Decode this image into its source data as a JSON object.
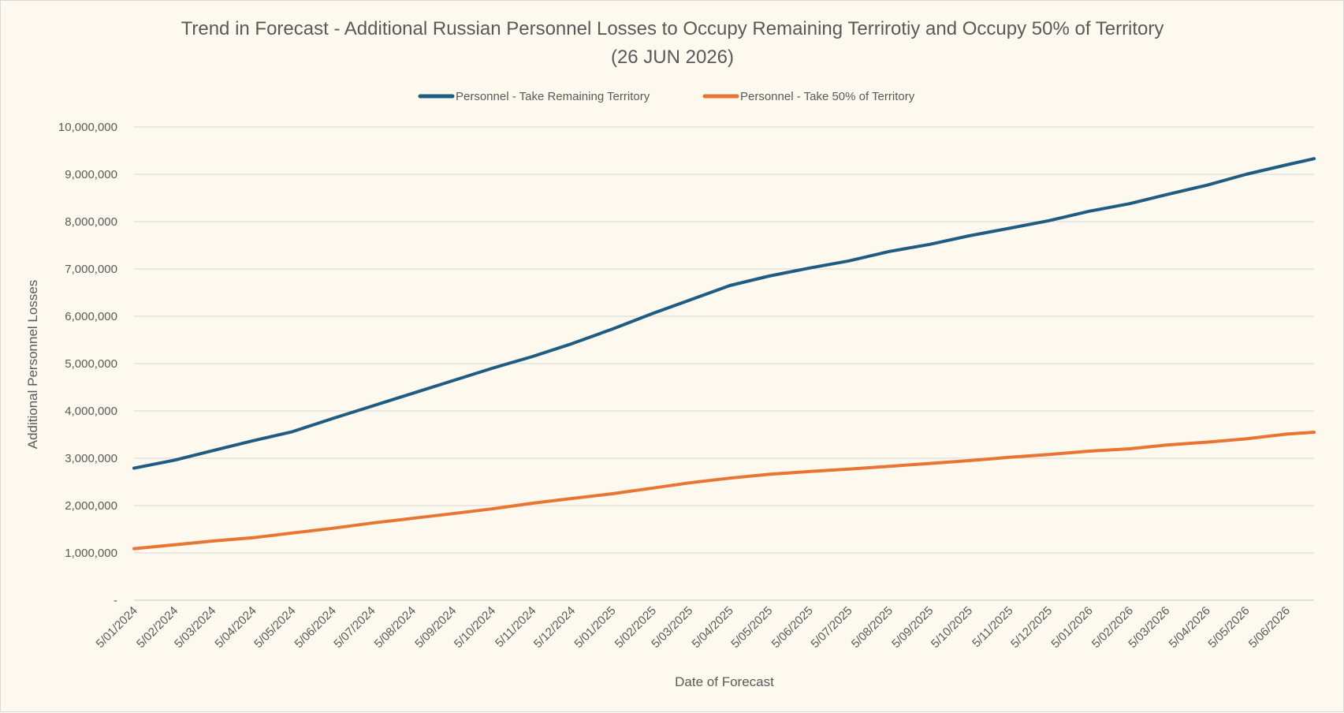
{
  "chart_data": {
    "type": "line",
    "title": "Trend in Forecast - Additional Russian Personnel Losses to Occupy Remaining Terrirotiy and Occupy 50% of Territory",
    "subtitle": "(26 JUN 2026)",
    "xlabel": "Date of Forecast",
    "ylabel": "Additional Personnel Losses",
    "ylim": [
      0,
      10000000
    ],
    "y_ticks": [
      {
        "v": 0,
        "label": "-"
      },
      {
        "v": 1000000,
        "label": "1,000,000"
      },
      {
        "v": 2000000,
        "label": "2,000,000"
      },
      {
        "v": 3000000,
        "label": "3,000,000"
      },
      {
        "v": 4000000,
        "label": "4,000,000"
      },
      {
        "v": 5000000,
        "label": "5,000,000"
      },
      {
        "v": 6000000,
        "label": "6,000,000"
      },
      {
        "v": 7000000,
        "label": "7,000,000"
      },
      {
        "v": 8000000,
        "label": "8,000,000"
      },
      {
        "v": 9000000,
        "label": "9,000,000"
      },
      {
        "v": 10000000,
        "label": "10,000,000"
      }
    ],
    "x_tick_labels": [
      "5/01/2024",
      "5/02/2024",
      "5/03/2024",
      "5/04/2024",
      "5/05/2024",
      "5/06/2024",
      "5/07/2024",
      "5/08/2024",
      "5/09/2024",
      "5/10/2024",
      "5/11/2024",
      "5/12/2024",
      "5/01/2025",
      "5/02/2025",
      "5/03/2025",
      "5/04/2025",
      "5/05/2025",
      "5/06/2025",
      "5/07/2025",
      "5/08/2025",
      "5/09/2025",
      "5/10/2025",
      "5/11/2025",
      "5/12/2025",
      "5/01/2026",
      "5/02/2026",
      "5/03/2026",
      "5/04/2026",
      "5/05/2026",
      "5/06/2026"
    ],
    "x_end": "26/06/2026",
    "grid": true,
    "legend_position": "top",
    "series": [
      {
        "name": "Personnel - Take Remaining Territory",
        "color": "#1f5c82",
        "points": [
          [
            "5/01/2024",
            2790000
          ],
          [
            "5/02/2024",
            2960000
          ],
          [
            "5/03/2024",
            3160000
          ],
          [
            "5/04/2024",
            3370000
          ],
          [
            "5/05/2024",
            3560000
          ],
          [
            "5/06/2024",
            3840000
          ],
          [
            "5/07/2024",
            4100000
          ],
          [
            "5/08/2024",
            4370000
          ],
          [
            "5/09/2024",
            4640000
          ],
          [
            "5/10/2024",
            4900000
          ],
          [
            "5/11/2024",
            5150000
          ],
          [
            "5/12/2024",
            5420000
          ],
          [
            "5/01/2025",
            5730000
          ],
          [
            "5/02/2025",
            6060000
          ],
          [
            "5/03/2025",
            6340000
          ],
          [
            "5/04/2025",
            6650000
          ],
          [
            "5/05/2025",
            6850000
          ],
          [
            "5/06/2025",
            7020000
          ],
          [
            "5/07/2025",
            7170000
          ],
          [
            "5/08/2025",
            7370000
          ],
          [
            "5/09/2025",
            7520000
          ],
          [
            "5/10/2025",
            7700000
          ],
          [
            "5/11/2025",
            7860000
          ],
          [
            "5/12/2025",
            8020000
          ],
          [
            "5/01/2026",
            8220000
          ],
          [
            "5/02/2026",
            8380000
          ],
          [
            "5/03/2026",
            8570000
          ],
          [
            "5/04/2026",
            8770000
          ],
          [
            "5/05/2026",
            9000000
          ],
          [
            "5/06/2026",
            9200000
          ],
          [
            "26/06/2026",
            9330000
          ]
        ]
      },
      {
        "name": "Personnel - Take 50% of Territory",
        "color": "#e87532",
        "points": [
          [
            "5/01/2024",
            1090000
          ],
          [
            "5/02/2024",
            1170000
          ],
          [
            "5/03/2024",
            1250000
          ],
          [
            "5/04/2024",
            1320000
          ],
          [
            "5/05/2024",
            1420000
          ],
          [
            "5/06/2024",
            1520000
          ],
          [
            "5/07/2024",
            1630000
          ],
          [
            "5/08/2024",
            1730000
          ],
          [
            "5/09/2024",
            1830000
          ],
          [
            "5/10/2024",
            1930000
          ],
          [
            "5/11/2024",
            2050000
          ],
          [
            "5/12/2024",
            2150000
          ],
          [
            "5/01/2025",
            2250000
          ],
          [
            "5/02/2025",
            2370000
          ],
          [
            "5/03/2025",
            2480000
          ],
          [
            "5/04/2025",
            2580000
          ],
          [
            "5/05/2025",
            2660000
          ],
          [
            "5/06/2025",
            2720000
          ],
          [
            "5/07/2025",
            2770000
          ],
          [
            "5/08/2025",
            2830000
          ],
          [
            "5/09/2025",
            2890000
          ],
          [
            "5/10/2025",
            2950000
          ],
          [
            "5/11/2025",
            3020000
          ],
          [
            "5/12/2025",
            3080000
          ],
          [
            "5/01/2026",
            3150000
          ],
          [
            "5/02/2026",
            3200000
          ],
          [
            "5/03/2026",
            3280000
          ],
          [
            "5/04/2026",
            3340000
          ],
          [
            "5/05/2026",
            3410000
          ],
          [
            "5/06/2026",
            3510000
          ],
          [
            "26/06/2026",
            3550000
          ]
        ]
      }
    ]
  }
}
